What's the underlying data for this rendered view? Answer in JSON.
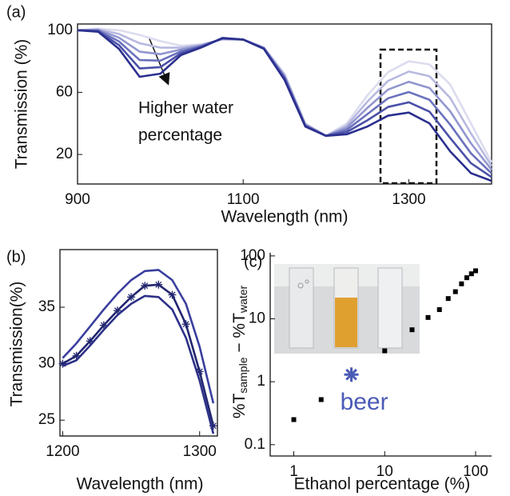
{
  "chart_data": [
    {
      "type": "line",
      "panel_label": "(a)",
      "x_label": "Wavelength (nm)",
      "y_label": "Transmission (%)",
      "annotation": [
        "Higher water",
        "percentage"
      ],
      "xlim": [
        900,
        1400
      ],
      "ylim": [
        1,
        104
      ],
      "xticks": [
        900,
        1100,
        1300
      ],
      "yticks": [
        20,
        60,
        100
      ],
      "x": [
        900,
        925,
        950,
        975,
        1000,
        1025,
        1050,
        1075,
        1100,
        1125,
        1150,
        1175,
        1200,
        1225,
        1250,
        1275,
        1300,
        1325,
        1350,
        1375,
        1400
      ],
      "series": [
        {
          "color": "#dcdcef",
          "values": [
            100,
            101,
            100,
            97,
            93,
            90,
            91,
            94,
            94,
            89,
            72,
            40,
            32,
            40,
            58,
            73,
            80,
            78,
            65,
            40,
            15
          ]
        },
        {
          "color": "#b7b9e0",
          "values": [
            100,
            100.6,
            97.6,
            91.6,
            88.8,
            88.8,
            90.6,
            94.2,
            94,
            88.8,
            71.2,
            39.6,
            32,
            38.6,
            54,
            67.4,
            73.4,
            70.4,
            56.4,
            33.6,
            12.6
          ]
        },
        {
          "color": "#9296cf",
          "values": [
            100,
            100.2,
            95.2,
            86.2,
            84.6,
            87.6,
            90.2,
            94.4,
            94,
            88.6,
            70.4,
            39.2,
            32,
            37.2,
            50,
            61.8,
            66.8,
            62.8,
            47.8,
            27.2,
            10.2
          ]
        },
        {
          "color": "#6b71bd",
          "values": [
            100,
            99.8,
            92.8,
            80.8,
            80.4,
            86.4,
            89.8,
            94.6,
            94,
            88.4,
            69.6,
            38.8,
            32,
            35.8,
            46,
            56.2,
            60.2,
            55.2,
            39.2,
            20.8,
            7.8
          ]
        },
        {
          "color": "#4a50a8",
          "values": [
            100,
            99.4,
            90.4,
            75.4,
            76.2,
            85.2,
            89.4,
            94.8,
            94,
            88.2,
            68.8,
            38.4,
            32,
            34.4,
            42,
            50.6,
            53.6,
            47.6,
            30.6,
            14.4,
            5.4
          ]
        },
        {
          "color": "#2b2f8e",
          "values": [
            100,
            99,
            88,
            70,
            72,
            84,
            89,
            95,
            94,
            88,
            68,
            38,
            32,
            33,
            38,
            45,
            47,
            40,
            22,
            8,
            3
          ]
        }
      ]
    },
    {
      "type": "line",
      "panel_label": "(b)",
      "x_label": "Wavelength (nm)",
      "y_label": "Transmission(%)",
      "xlim": [
        1198,
        1313
      ],
      "ylim": [
        23.6,
        40.1
      ],
      "xticks": [
        1200,
        1300
      ],
      "yticks": [
        25,
        30,
        35
      ],
      "x": [
        1200,
        1210,
        1220,
        1230,
        1240,
        1250,
        1260,
        1270,
        1280,
        1290,
        1300,
        1310
      ],
      "series": [
        {
          "color": "#3a3f9e",
          "values": [
            30.5,
            31.8,
            33.3,
            34.8,
            36.2,
            37.4,
            38.2,
            38.3,
            37.4,
            35.3,
            31.5,
            26.5
          ]
        },
        {
          "color": "#22266f",
          "marker": "asterisk",
          "values": [
            30.0,
            30.7,
            32.0,
            33.4,
            34.7,
            35.9,
            36.9,
            37.0,
            36.1,
            33.5,
            29.3,
            24.5
          ]
        },
        {
          "color": "#2d3188",
          "values": [
            29.8,
            30.3,
            31.6,
            33.0,
            34.3,
            35.3,
            36.0,
            35.9,
            34.8,
            32.3,
            28.5,
            23.8
          ]
        }
      ]
    },
    {
      "type": "scatter",
      "panel_label": "(c)",
      "x_label": "Ethanol percentage (%)",
      "y_label": [
        "%T",
        "sample",
        " − %T",
        "water"
      ],
      "log_x": true,
      "log_y": true,
      "xlim": [
        0.55,
        150
      ],
      "ylim": [
        0.066,
        112
      ],
      "xticks": [
        1,
        10,
        100
      ],
      "yticks": [
        0.1,
        1,
        10,
        100
      ],
      "series": [
        {
          "color": "#000000",
          "marker": "square",
          "x": [
            1,
            2,
            10,
            20,
            30,
            40,
            50,
            60,
            70,
            80,
            90,
            100
          ],
          "values": [
            0.25,
            0.52,
            3.1,
            6.7,
            10.5,
            14,
            21,
            27,
            36,
            45,
            52,
            58
          ]
        },
        {
          "name": "beer",
          "color": "#4a5bb5",
          "marker": "asterisk",
          "x": [
            4.3
          ],
          "values": [
            1.3
          ]
        }
      ]
    }
  ]
}
